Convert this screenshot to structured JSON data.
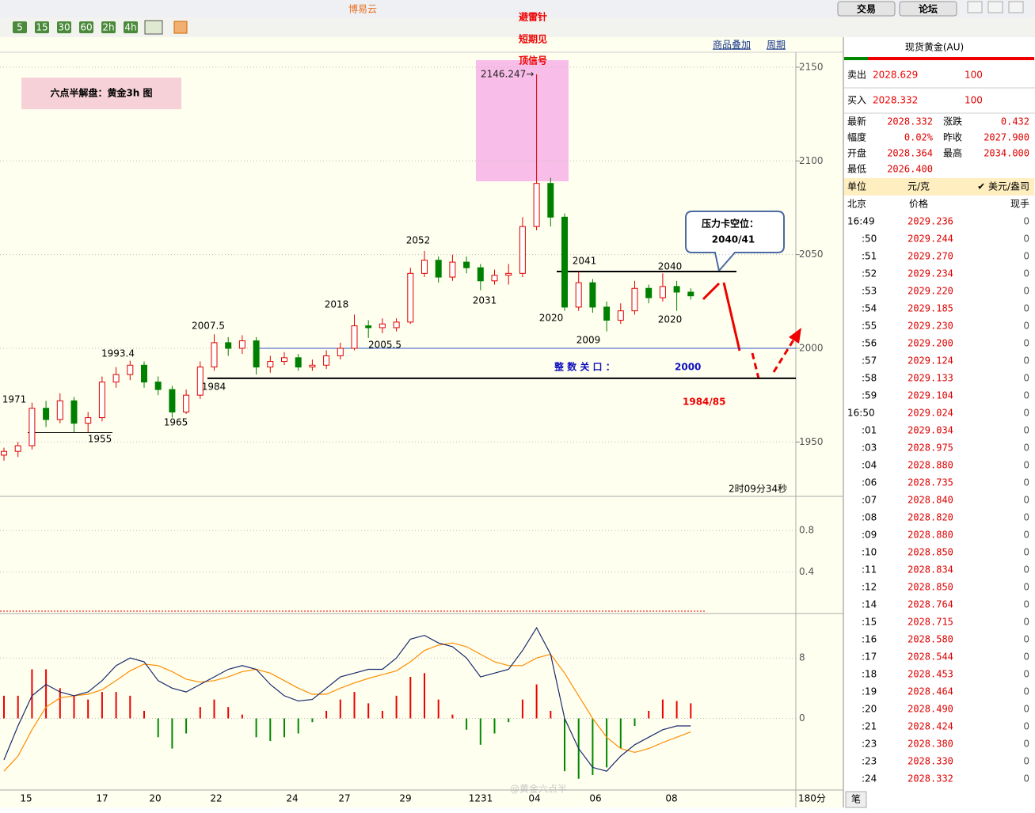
{
  "window": {
    "title": "博易云",
    "buttons": [
      "交易",
      "论坛"
    ]
  },
  "toolbar": {
    "periods": [
      "5",
      "15",
      "30",
      "60",
      "2h",
      "4h"
    ],
    "links": [
      "商品叠加",
      "周期"
    ]
  },
  "chart_data": [
    {
      "type": "candlestick",
      "candles": [
        [
          1943,
          1947,
          1940,
          1945
        ],
        [
          1945,
          1950,
          1942,
          1948
        ],
        [
          1948,
          1971,
          1946,
          1968
        ],
        [
          1968,
          1972,
          1958,
          1962
        ],
        [
          1962,
          1976,
          1960,
          1972
        ],
        [
          1972,
          1974,
          1955,
          1960
        ],
        [
          1960,
          1966,
          1955,
          1963
        ],
        [
          1963,
          1985,
          1961,
          1982
        ],
        [
          1982,
          1990,
          1979,
          1986
        ],
        [
          1986,
          1993.4,
          1983,
          1991
        ],
        [
          1991,
          1993,
          1979,
          1982
        ],
        [
          1982,
          1985,
          1975,
          1978
        ],
        [
          1978,
          1980,
          1963,
          1966
        ],
        [
          1966,
          1978,
          1965,
          1975
        ],
        [
          1975,
          1993,
          1973,
          1990
        ],
        [
          1990,
          2007.5,
          1988,
          2003
        ],
        [
          2003,
          2006,
          1996,
          2000
        ],
        [
          2000,
          2007,
          1997,
          2004
        ],
        [
          2004,
          2006,
          1986,
          1990
        ],
        [
          1990,
          1996,
          1987,
          1993
        ],
        [
          1993,
          1998,
          1991,
          1995
        ],
        [
          1995,
          1997,
          1988,
          1990
        ],
        [
          1990,
          1994,
          1988,
          1991
        ],
        [
          1991,
          1999,
          1989,
          1996
        ],
        [
          1996,
          2003,
          1994,
          2000
        ],
        [
          2000,
          2018,
          1999,
          2012
        ],
        [
          2012,
          2015,
          2005.5,
          2011
        ],
        [
          2011,
          2016,
          2008,
          2013
        ],
        [
          2011,
          2016,
          2009,
          2014
        ],
        [
          2014,
          2043,
          2013,
          2040
        ],
        [
          2040,
          2052,
          2038,
          2047
        ],
        [
          2047,
          2049,
          2035,
          2038
        ],
        [
          2038,
          2050,
          2036,
          2046
        ],
        [
          2046,
          2049,
          2040,
          2043
        ],
        [
          2043,
          2045,
          2031,
          2036
        ],
        [
          2036,
          2042,
          2034,
          2039
        ],
        [
          2039,
          2045,
          2034,
          2040
        ],
        [
          2040,
          2070,
          2038,
          2065
        ],
        [
          2065,
          2146.247,
          2063,
          2088
        ],
        [
          2088,
          2091,
          2065,
          2070
        ],
        [
          2070,
          2072,
          2020,
          2022
        ],
        [
          2022,
          2041,
          2020,
          2035
        ],
        [
          2035,
          2037,
          2019,
          2022
        ],
        [
          2022,
          2025,
          2009,
          2015
        ],
        [
          2015,
          2024,
          2013,
          2020
        ],
        [
          2020,
          2036,
          2018,
          2032
        ],
        [
          2032,
          2034,
          2024,
          2027
        ],
        [
          2027,
          2040,
          2025,
          2033
        ],
        [
          2033,
          2036,
          2020,
          2030
        ],
        [
          2030,
          2032,
          2026,
          2028
        ]
      ],
      "up_color": "#e00000",
      "down_color": "#008000",
      "ylim": [
        1921,
        2158
      ],
      "yticks": [
        1950,
        2000,
        2050,
        2100,
        2150
      ],
      "hlines": [
        2041,
        2000,
        1984,
        1955
      ],
      "x_labels": [
        "15",
        "17",
        "20",
        "22",
        "24",
        "27",
        "29",
        "1231",
        "04",
        "06",
        "08"
      ],
      "annotations": [
        "1971",
        "1955",
        "1993.4",
        "1965",
        "2007.5",
        "1984",
        "2018",
        "2005.5",
        "2052",
        "2031",
        "2020",
        "2041",
        "2009",
        "2040",
        "2020"
      ],
      "title_box": "六点半解盘：黄金3h 图",
      "signal": [
        "避雷针",
        "短期见",
        "顶信号"
      ],
      "peak_label": "2146.247→",
      "callout": [
        "压力卡空位：",
        "2040/41"
      ],
      "level_text": "整 数 关 口 ：",
      "level_value": "2000",
      "target": "1984/85",
      "countdown": "2时09分34秒"
    },
    {
      "type": "indicator",
      "ylim": [
        0,
        1.13
      ],
      "yticks": [
        0.4,
        0.8
      ]
    },
    {
      "type": "macd",
      "ylim": [
        -9.5,
        13.9
      ],
      "yticks": [
        0,
        8
      ],
      "hist": [
        3,
        3,
        6.5,
        6.5,
        4,
        3,
        2.5,
        3.5,
        3.5,
        3,
        1,
        -2.5,
        -4,
        -2,
        1.5,
        2.5,
        1.5,
        0.5,
        -2.5,
        -3,
        -2.5,
        -2,
        -0.5,
        1,
        2.5,
        3.5,
        2,
        1,
        3,
        5.5,
        6,
        2.5,
        0.5,
        -1.5,
        -3.5,
        -2,
        -0.5,
        2.5,
        4.5,
        1,
        -7,
        -8,
        -7.5,
        -6.5,
        -4,
        -1,
        1,
        2.5,
        2.3,
        2
      ],
      "dif": [
        -5.5,
        -1,
        3,
        4.5,
        3.5,
        3,
        3.5,
        5,
        7,
        8,
        7.5,
        5,
        4,
        3.5,
        4.5,
        5.5,
        6.5,
        7,
        6.5,
        4.5,
        3,
        2.3,
        2.5,
        4,
        5.5,
        6,
        6.5,
        6.5,
        8,
        10.5,
        11,
        10,
        9.5,
        8,
        5.5,
        6,
        6.5,
        9,
        12,
        8.5,
        0,
        -4,
        -6.5,
        -7,
        -5,
        -3.5,
        -2.5,
        -1.5,
        -1,
        -1
      ],
      "dea": [
        -7,
        -5,
        -1.5,
        1.5,
        2.7,
        3,
        3.2,
        3.8,
        5,
        6.3,
        7.2,
        7,
        6.2,
        5.2,
        4.8,
        5,
        5.5,
        6.2,
        6.5,
        6,
        5,
        4,
        3.2,
        3.2,
        4,
        4.7,
        5.3,
        5.8,
        6.3,
        7.5,
        9,
        9.7,
        10,
        9.5,
        8.5,
        7.5,
        7,
        7,
        8,
        8.5,
        6,
        3,
        0,
        -2.5,
        -4,
        -4.5,
        -4,
        -3.2,
        -2.5,
        -1.8
      ],
      "dif_color": "#1a2a6c",
      "dea_color": "#ff8c00",
      "period": "180分"
    }
  ],
  "quote": {
    "title": "现货黄金(AU)",
    "sell": {
      "label": "卖出",
      "price": "2028.629",
      "qty": "100"
    },
    "buy": {
      "label": "买入",
      "price": "2028.332",
      "qty": "100"
    },
    "stats": [
      [
        "最新",
        "2028.332",
        "涨跌",
        "0.432"
      ],
      [
        "幅度",
        "0.02%",
        "昨收",
        "2027.900"
      ],
      [
        "开盘",
        "2028.364",
        "最高",
        "2034.000"
      ],
      [
        "最低",
        "2026.400"
      ]
    ],
    "unit": [
      "单位",
      "元/克",
      "✔ 美元/盎司"
    ],
    "columns": [
      "北京",
      "价格",
      "现手"
    ],
    "rows": [
      [
        "16:49",
        "2029.236",
        0
      ],
      [
        ":50",
        "2029.244",
        0
      ],
      [
        ":51",
        "2029.270",
        0
      ],
      [
        ":52",
        "2029.234",
        0
      ],
      [
        ":53",
        "2029.220",
        0
      ],
      [
        ":54",
        "2029.185",
        0
      ],
      [
        ":55",
        "2029.230",
        0
      ],
      [
        ":56",
        "2029.200",
        0
      ],
      [
        ":57",
        "2029.124",
        0
      ],
      [
        ":58",
        "2029.133",
        0
      ],
      [
        ":59",
        "2029.104",
        0
      ],
      [
        "16:50",
        "2029.024",
        0
      ],
      [
        ":01",
        "2029.034",
        0
      ],
      [
        ":03",
        "2028.975",
        0
      ],
      [
        ":04",
        "2028.880",
        0
      ],
      [
        ":06",
        "2028.735",
        0
      ],
      [
        ":07",
        "2028.840",
        0
      ],
      [
        ":08",
        "2028.820",
        0
      ],
      [
        ":09",
        "2028.880",
        0
      ],
      [
        ":10",
        "2028.850",
        0
      ],
      [
        ":11",
        "2028.834",
        0
      ],
      [
        ":12",
        "2028.850",
        0
      ],
      [
        ":14",
        "2028.764",
        0
      ],
      [
        ":15",
        "2028.715",
        0
      ],
      [
        ":16",
        "2028.580",
        0
      ],
      [
        ":17",
        "2028.544",
        0
      ],
      [
        ":18",
        "2028.453",
        0
      ],
      [
        ":19",
        "2028.464",
        0
      ],
      [
        ":20",
        "2028.490",
        0
      ],
      [
        ":21",
        "2028.424",
        0
      ],
      [
        ":23",
        "2028.380",
        0
      ],
      [
        ":23",
        "2028.330",
        0
      ],
      [
        ":24",
        "2028.332",
        0
      ]
    ],
    "tab": "笔"
  },
  "watermark": "@黄金六点半"
}
